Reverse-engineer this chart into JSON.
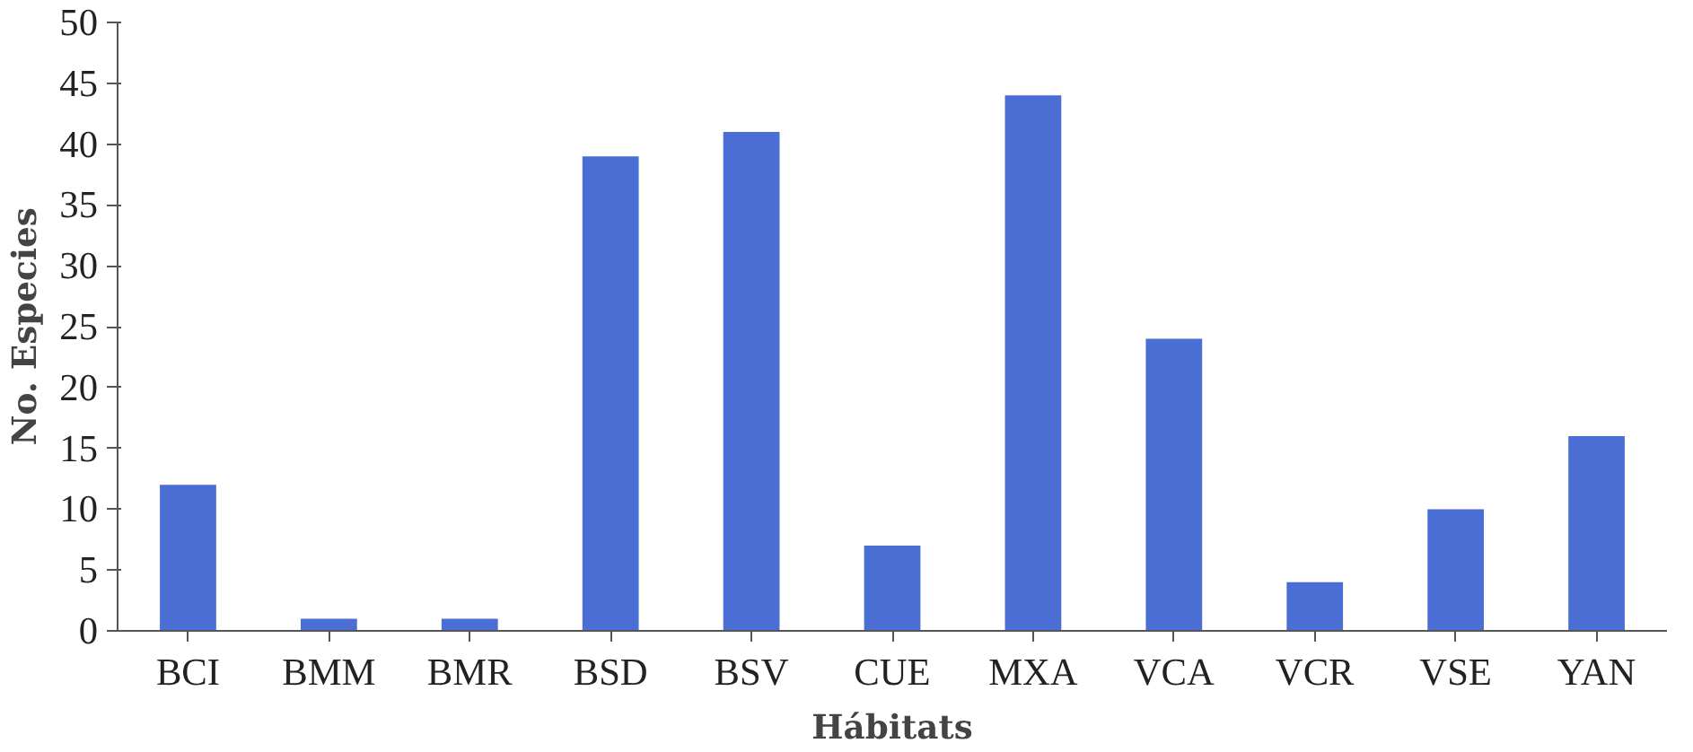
{
  "chart_data": {
    "type": "bar",
    "xlabel": "Hábitats",
    "ylabel": "No. Especies",
    "categories": [
      "BCI",
      "BMM",
      "BMR",
      "BSD",
      "BSV",
      "CUE",
      "MXA",
      "VCA",
      "VCR",
      "VSE",
      "YAN"
    ],
    "values": [
      12,
      1,
      1,
      39,
      41,
      7,
      44,
      24,
      4,
      10,
      16
    ],
    "color": "#4a6ed4",
    "ylim": [
      0,
      50
    ],
    "yticks": [
      0,
      5,
      10,
      15,
      20,
      25,
      30,
      35,
      40,
      45,
      50
    ],
    "grid": false
  }
}
